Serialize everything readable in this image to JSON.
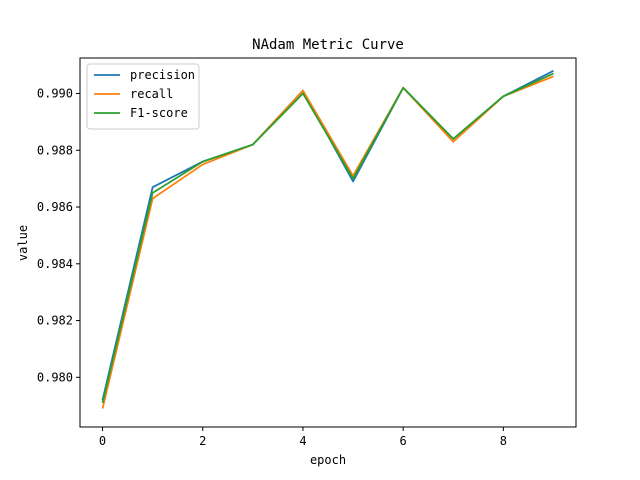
{
  "chart_data": {
    "type": "line",
    "title": "NAdam Metric Curve",
    "xlabel": "epoch",
    "ylabel": "value",
    "x": [
      0,
      1,
      2,
      3,
      4,
      5,
      6,
      7,
      8,
      9
    ],
    "xlim": [
      -0.45,
      9.45
    ],
    "ylim": [
      0.97825,
      0.99125
    ],
    "xticks": [
      0,
      2,
      4,
      6,
      8
    ],
    "yticks": [
      0.98,
      0.982,
      0.984,
      0.986,
      0.988,
      0.99
    ],
    "ytick_labels": [
      "0.980",
      "0.982",
      "0.984",
      "0.986",
      "0.988",
      "0.990"
    ],
    "grid": false,
    "legend_position": "upper-left",
    "series": [
      {
        "name": "precision",
        "color": "#1f77b4",
        "values": [
          0.9792,
          0.9867,
          0.9876,
          0.9882,
          0.9901,
          0.9869,
          0.9902,
          0.9884,
          0.9899,
          0.9908
        ]
      },
      {
        "name": "recall",
        "color": "#ff7f0e",
        "values": [
          0.9789,
          0.9863,
          0.9875,
          0.9882,
          0.9901,
          0.9871,
          0.9902,
          0.9883,
          0.9899,
          0.9906
        ]
      },
      {
        "name": "F1-score",
        "color": "#2ca02c",
        "values": [
          0.9791,
          0.9865,
          0.9876,
          0.9882,
          0.99,
          0.987,
          0.9902,
          0.9884,
          0.9899,
          0.9907
        ]
      }
    ]
  }
}
